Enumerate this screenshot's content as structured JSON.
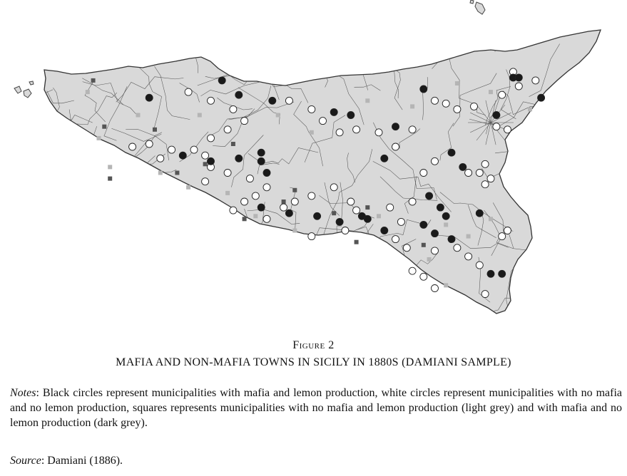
{
  "figure": {
    "number": "Figure 2",
    "title": "MAFIA AND NON-MAFIA TOWNS IN SICILY IN 1880S (DAMIANI SAMPLE)"
  },
  "notes": {
    "label": "Notes",
    "text": ": Black circles represent municipalities with mafia and lemon production, white circles represent municipalities with no mafia and no lemon production, squares represents municipalities with no mafia and lemon production (light grey) and with mafia and no lemon production (dark grey)."
  },
  "source": {
    "label": "Source",
    "text": ": Damiani (1886)."
  },
  "map_style": {
    "land_fill": "#d9d9d9",
    "border_color": "#555555",
    "mafia_lemon_color": "#1a1a1a",
    "no_mafia_no_lemon_color": "#ffffff",
    "light_square_color": "#b5b5b5",
    "dark_square_color": "#555555"
  },
  "map_markers": {
    "mafia_lemon": [
      [
        0.19,
        0.24
      ],
      [
        0.32,
        0.18
      ],
      [
        0.35,
        0.23
      ],
      [
        0.41,
        0.25
      ],
      [
        0.52,
        0.29
      ],
      [
        0.55,
        0.3
      ],
      [
        0.63,
        0.34
      ],
      [
        0.68,
        0.21
      ],
      [
        0.84,
        0.17
      ],
      [
        0.85,
        0.17
      ],
      [
        0.89,
        0.24
      ],
      [
        0.81,
        0.3
      ],
      [
        0.25,
        0.44
      ],
      [
        0.3,
        0.46
      ],
      [
        0.35,
        0.45
      ],
      [
        0.39,
        0.43
      ],
      [
        0.39,
        0.46
      ],
      [
        0.4,
        0.5
      ],
      [
        0.61,
        0.45
      ],
      [
        0.73,
        0.43
      ],
      [
        0.75,
        0.48
      ],
      [
        0.39,
        0.62
      ],
      [
        0.44,
        0.64
      ],
      [
        0.49,
        0.65
      ],
      [
        0.53,
        0.67
      ],
      [
        0.57,
        0.65
      ],
      [
        0.58,
        0.66
      ],
      [
        0.61,
        0.7
      ],
      [
        0.68,
        0.68
      ],
      [
        0.69,
        0.58
      ],
      [
        0.71,
        0.62
      ],
      [
        0.72,
        0.65
      ],
      [
        0.78,
        0.64
      ],
      [
        0.7,
        0.71
      ],
      [
        0.73,
        0.73
      ],
      [
        0.8,
        0.85
      ],
      [
        0.82,
        0.85
      ]
    ],
    "no_mafia_no_lemon": [
      [
        0.26,
        0.22
      ],
      [
        0.3,
        0.25
      ],
      [
        0.34,
        0.28
      ],
      [
        0.3,
        0.38
      ],
      [
        0.33,
        0.35
      ],
      [
        0.36,
        0.32
      ],
      [
        0.44,
        0.25
      ],
      [
        0.48,
        0.28
      ],
      [
        0.5,
        0.32
      ],
      [
        0.53,
        0.36
      ],
      [
        0.56,
        0.35
      ],
      [
        0.6,
        0.36
      ],
      [
        0.63,
        0.41
      ],
      [
        0.66,
        0.35
      ],
      [
        0.7,
        0.25
      ],
      [
        0.72,
        0.26
      ],
      [
        0.74,
        0.28
      ],
      [
        0.77,
        0.27
      ],
      [
        0.82,
        0.23
      ],
      [
        0.85,
        0.2
      ],
      [
        0.88,
        0.18
      ],
      [
        0.84,
        0.15
      ],
      [
        0.81,
        0.34
      ],
      [
        0.83,
        0.35
      ],
      [
        0.16,
        0.41
      ],
      [
        0.19,
        0.4
      ],
      [
        0.21,
        0.45
      ],
      [
        0.23,
        0.42
      ],
      [
        0.27,
        0.42
      ],
      [
        0.29,
        0.44
      ],
      [
        0.3,
        0.48
      ],
      [
        0.29,
        0.53
      ],
      [
        0.33,
        0.5
      ],
      [
        0.37,
        0.52
      ],
      [
        0.4,
        0.55
      ],
      [
        0.38,
        0.58
      ],
      [
        0.36,
        0.6
      ],
      [
        0.34,
        0.63
      ],
      [
        0.4,
        0.66
      ],
      [
        0.43,
        0.62
      ],
      [
        0.45,
        0.6
      ],
      [
        0.48,
        0.58
      ],
      [
        0.52,
        0.55
      ],
      [
        0.55,
        0.6
      ],
      [
        0.56,
        0.63
      ],
      [
        0.62,
        0.62
      ],
      [
        0.64,
        0.67
      ],
      [
        0.66,
        0.6
      ],
      [
        0.68,
        0.5
      ],
      [
        0.7,
        0.46
      ],
      [
        0.76,
        0.5
      ],
      [
        0.78,
        0.5
      ],
      [
        0.79,
        0.47
      ],
      [
        0.8,
        0.52
      ],
      [
        0.79,
        0.54
      ],
      [
        0.48,
        0.72
      ],
      [
        0.54,
        0.7
      ],
      [
        0.63,
        0.73
      ],
      [
        0.65,
        0.76
      ],
      [
        0.7,
        0.77
      ],
      [
        0.74,
        0.76
      ],
      [
        0.76,
        0.79
      ],
      [
        0.78,
        0.82
      ],
      [
        0.82,
        0.72
      ],
      [
        0.83,
        0.7
      ],
      [
        0.66,
        0.84
      ],
      [
        0.68,
        0.86
      ],
      [
        0.7,
        0.9
      ],
      [
        0.79,
        0.92
      ]
    ],
    "light_square": [
      [
        0.08,
        0.22
      ],
      [
        0.17,
        0.3
      ],
      [
        0.28,
        0.3
      ],
      [
        0.42,
        0.3
      ],
      [
        0.48,
        0.36
      ],
      [
        0.58,
        0.25
      ],
      [
        0.66,
        0.27
      ],
      [
        0.74,
        0.19
      ],
      [
        0.8,
        0.22
      ],
      [
        0.87,
        0.28
      ],
      [
        0.1,
        0.38
      ],
      [
        0.12,
        0.48
      ],
      [
        0.21,
        0.5
      ],
      [
        0.26,
        0.55
      ],
      [
        0.33,
        0.57
      ],
      [
        0.38,
        0.65
      ],
      [
        0.45,
        0.7
      ],
      [
        0.53,
        0.68
      ],
      [
        0.6,
        0.65
      ],
      [
        0.72,
        0.68
      ],
      [
        0.76,
        0.72
      ],
      [
        0.8,
        0.66
      ],
      [
        0.69,
        0.8
      ],
      [
        0.72,
        0.89
      ]
    ],
    "dark_square": [
      [
        0.09,
        0.18
      ],
      [
        0.11,
        0.34
      ],
      [
        0.2,
        0.35
      ],
      [
        0.29,
        0.47
      ],
      [
        0.24,
        0.5
      ],
      [
        0.34,
        0.4
      ],
      [
        0.45,
        0.56
      ],
      [
        0.36,
        0.66
      ],
      [
        0.43,
        0.6
      ],
      [
        0.52,
        0.64
      ],
      [
        0.58,
        0.62
      ],
      [
        0.56,
        0.74
      ],
      [
        0.12,
        0.52
      ],
      [
        0.68,
        0.75
      ]
    ]
  }
}
